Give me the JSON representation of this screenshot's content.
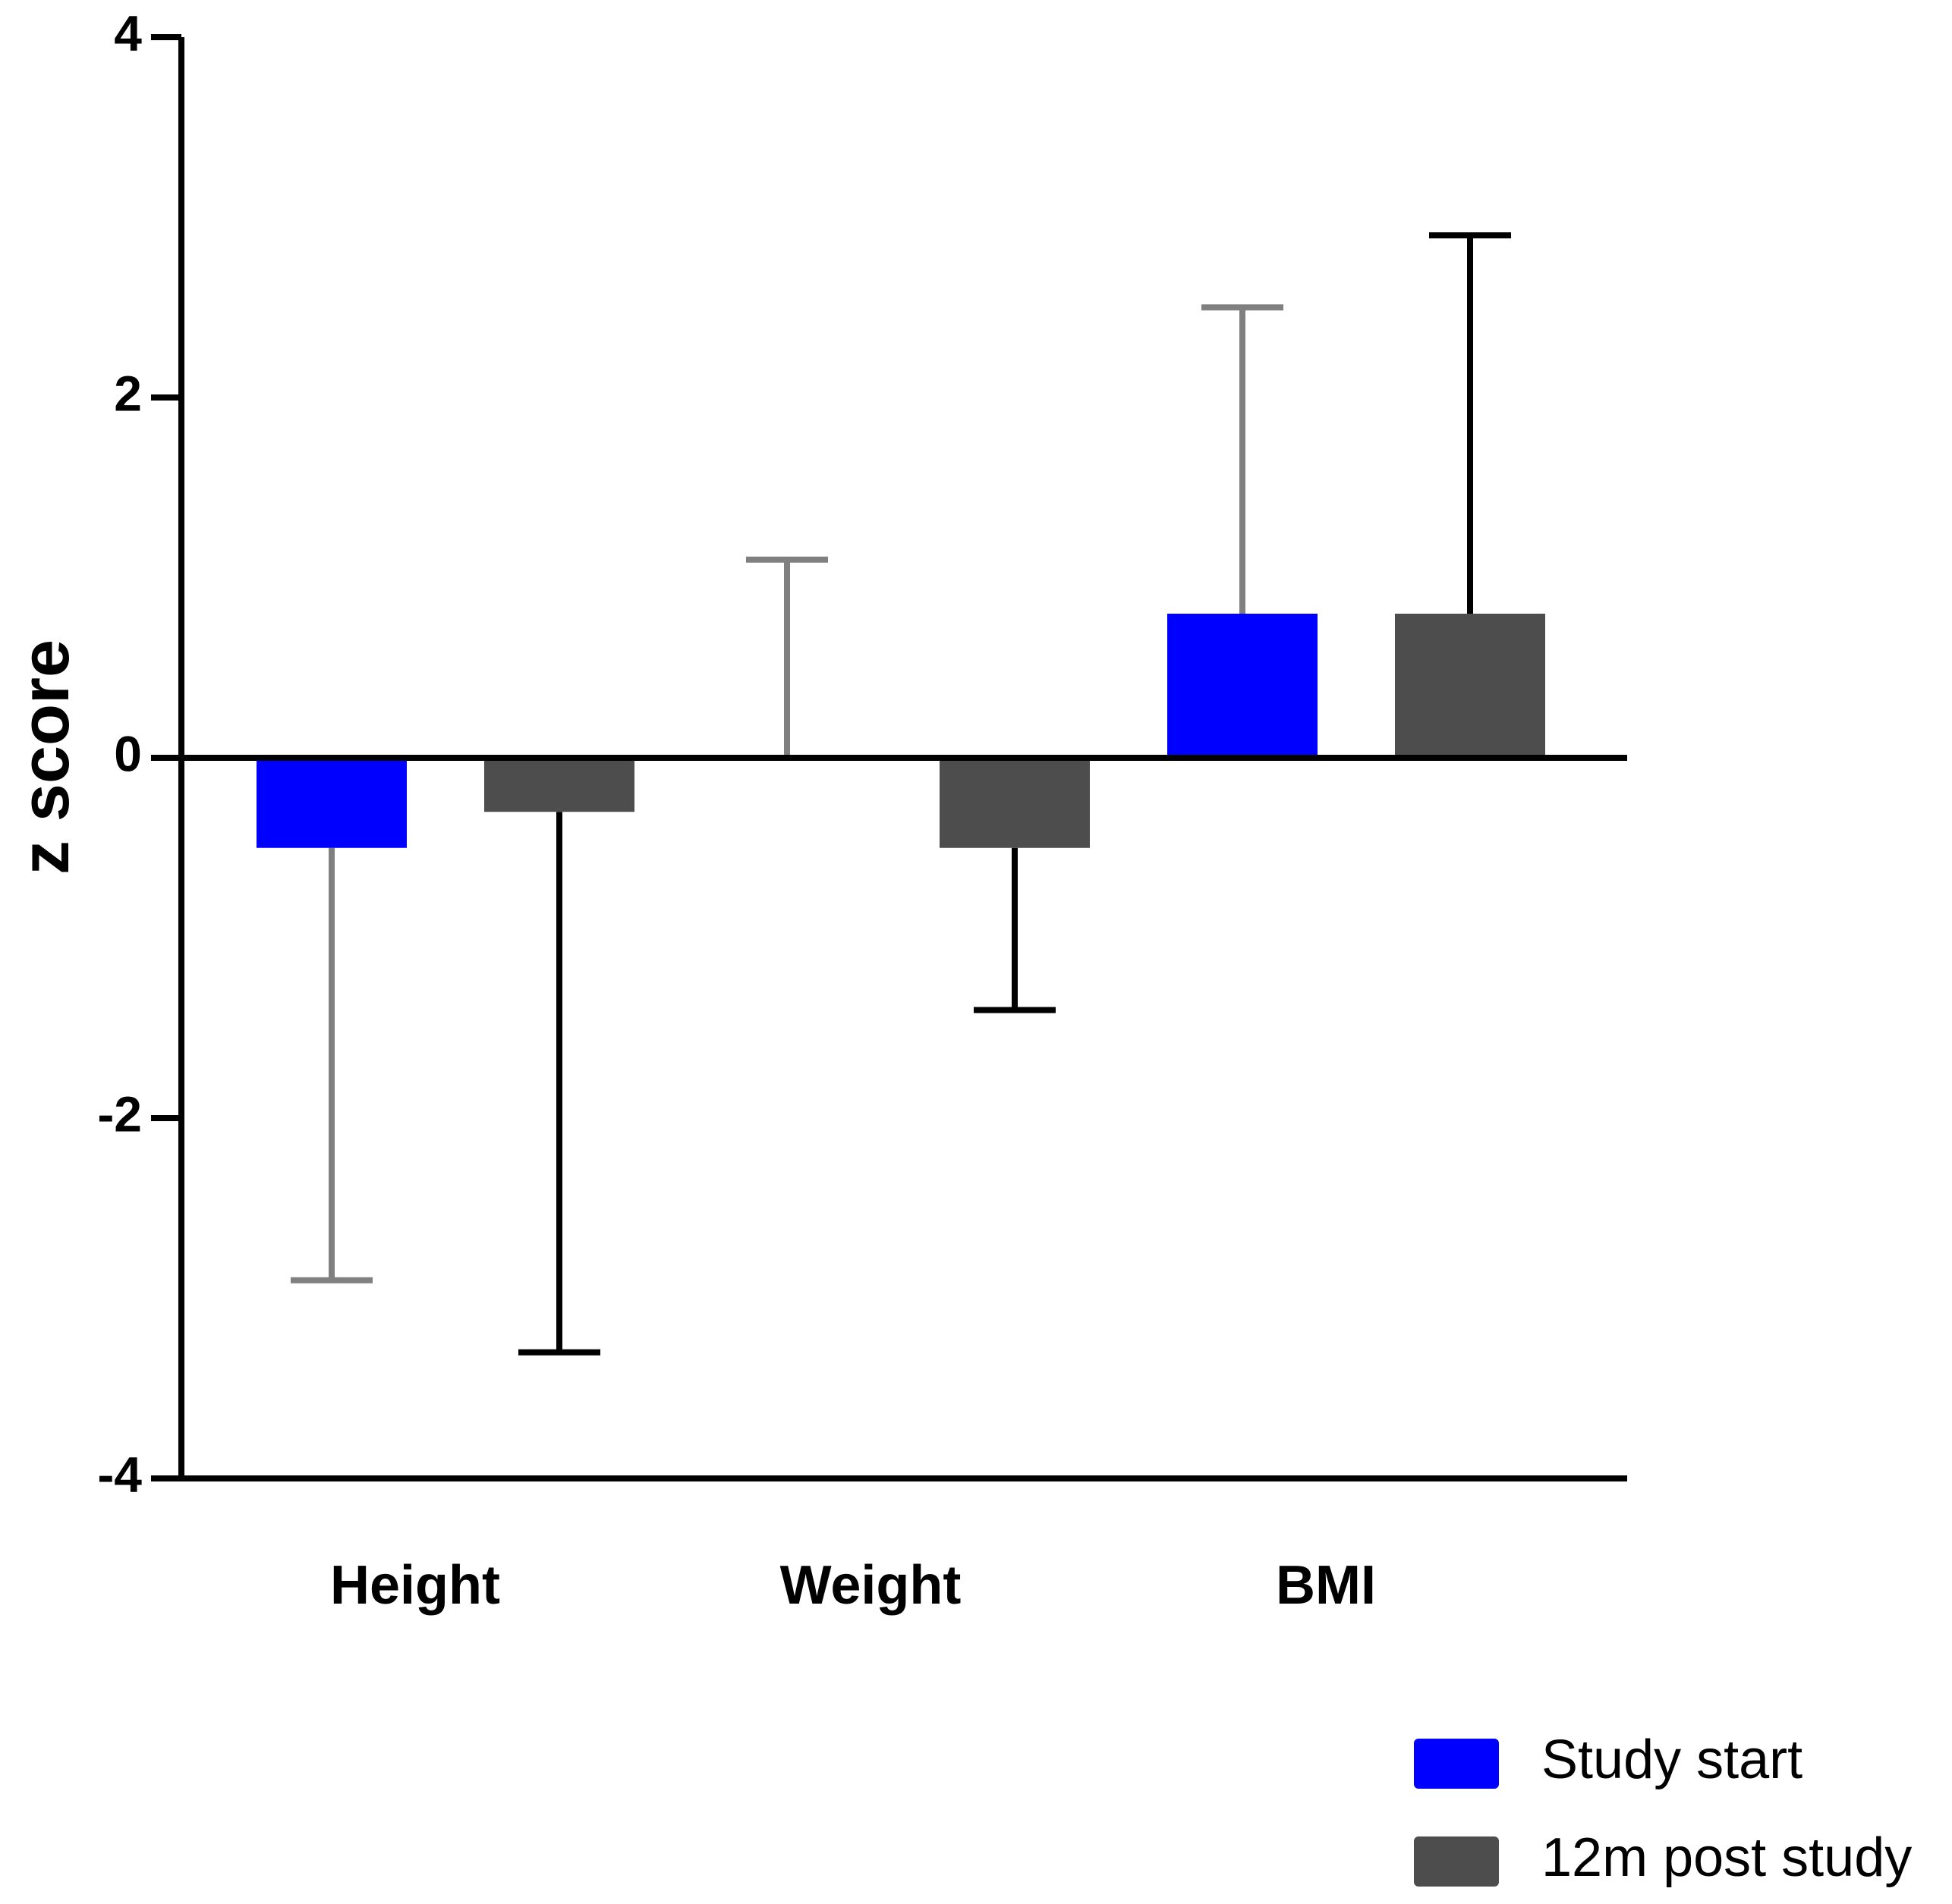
{
  "chart_data": {
    "type": "bar",
    "y_label": "z score",
    "categories": [
      "Height",
      "Weight",
      "BMI"
    ],
    "series": [
      {
        "name": "Study start",
        "color": "#0000ff",
        "error_color": "#808080",
        "values": [
          -0.5,
          0,
          0.8
        ],
        "errors": [
          2.4,
          1.1,
          1.7
        ]
      },
      {
        "name": "12m post study",
        "color": "#4d4d4d",
        "error_color": "#000000",
        "values": [
          -0.3,
          -0.5,
          0.8
        ],
        "errors": [
          3.0,
          0.9,
          2.1
        ]
      }
    ],
    "ylim": [
      -4,
      4
    ],
    "yticks": [
      -4,
      -2,
      0,
      2,
      4
    ],
    "grid": false,
    "legend": "bottom-right"
  }
}
